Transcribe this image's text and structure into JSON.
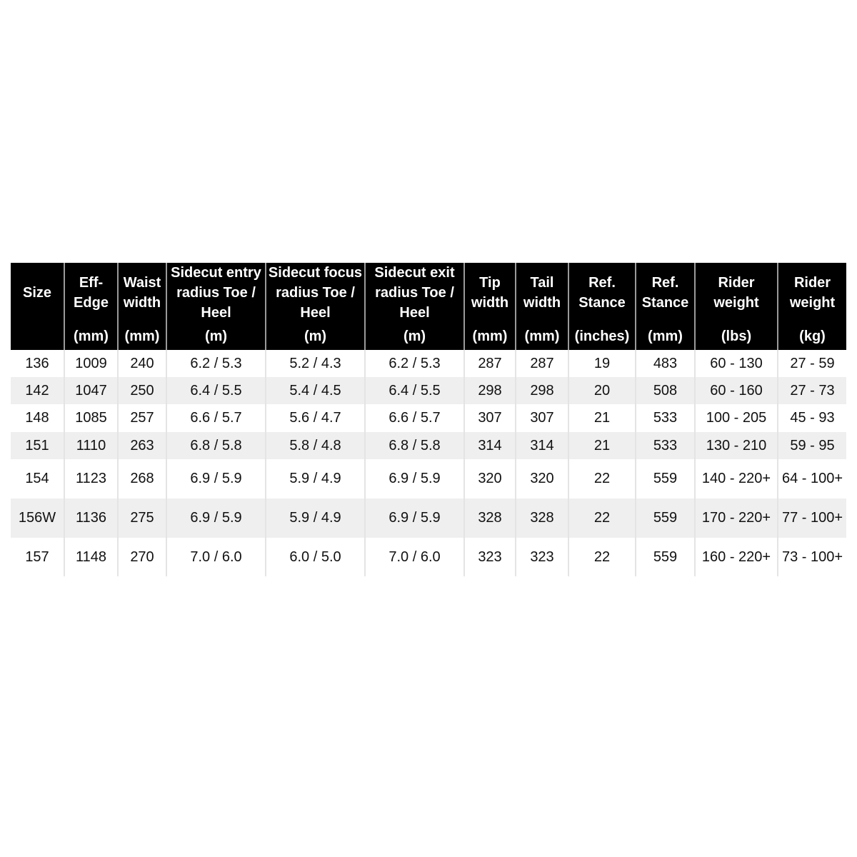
{
  "columns": [
    {
      "title": "Size",
      "unit": ""
    },
    {
      "title": "Eff- Edge",
      "unit": "(mm)"
    },
    {
      "title": "Waist width",
      "unit": "(mm)"
    },
    {
      "title": "Sidecut entry radius Toe / Heel",
      "unit": "(m)"
    },
    {
      "title": "Sidecut focus radius Toe / Heel",
      "unit": "(m)"
    },
    {
      "title": "Sidecut exit radius Toe / Heel",
      "unit": "(m)"
    },
    {
      "title": "Tip width",
      "unit": "(mm)"
    },
    {
      "title": "Tail width",
      "unit": "(mm)"
    },
    {
      "title": "Ref. Stance",
      "unit": "(inches)"
    },
    {
      "title": "Ref. Stance",
      "unit": "(mm)"
    },
    {
      "title": "Rider weight",
      "unit": "(lbs)"
    },
    {
      "title": "Rider weight",
      "unit": "(kg)"
    }
  ],
  "rows": [
    [
      "136",
      "1009",
      "240",
      "6.2 / 5.3",
      "5.2 / 4.3",
      "6.2 / 5.3",
      "287",
      "287",
      "19",
      "483",
      "60 - 130",
      "27 - 59"
    ],
    [
      "142",
      "1047",
      "250",
      "6.4 / 5.5",
      "5.4 / 4.5",
      "6.4 / 5.5",
      "298",
      "298",
      "20",
      "508",
      "60 - 160",
      "27 - 73"
    ],
    [
      "148",
      "1085",
      "257",
      "6.6 / 5.7",
      "5.6 / 4.7",
      "6.6 / 5.7",
      "307",
      "307",
      "21",
      "533",
      "100 - 205",
      "45 - 93"
    ],
    [
      "151",
      "1110",
      "263",
      "6.8 / 5.8",
      "5.8 / 4.8",
      "6.8 / 5.8",
      "314",
      "314",
      "21",
      "533",
      "130 - 210",
      "59 - 95"
    ],
    [
      "154",
      "1123",
      "268",
      "6.9 / 5.9",
      "5.9 / 4.9",
      "6.9 / 5.9",
      "320",
      "320",
      "22",
      "559",
      "140 - 220+",
      "64 - 100+"
    ],
    [
      "156W",
      "1136",
      "275",
      "6.9 / 5.9",
      "5.9 / 4.9",
      "6.9 / 5.9",
      "328",
      "328",
      "22",
      "559",
      "170 - 220+",
      "77 - 100+"
    ],
    [
      "157",
      "1148",
      "270",
      "7.0 / 6.0",
      "6.0 / 5.0",
      "7.0 / 6.0",
      "323",
      "323",
      "22",
      "559",
      "160 - 220+",
      "73 - 100+"
    ]
  ],
  "colors": {
    "header_bg": "#000000",
    "header_text": "#ffffff",
    "alt_row": "#efefef"
  }
}
